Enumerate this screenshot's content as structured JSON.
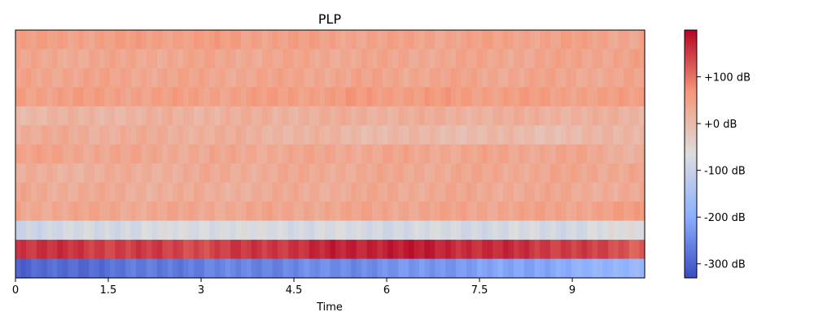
{
  "chart_data": {
    "type": "heatmap",
    "title": "PLP",
    "xlabel": "Time",
    "ylabel": "",
    "xlim": [
      0,
      10.17
    ],
    "x_ticks": [
      0,
      1.5,
      3,
      4.5,
      6,
      7.5,
      9
    ],
    "x_tick_labels": [
      "0",
      "1.5",
      "3",
      "4.5",
      "6",
      "7.5",
      "9"
    ],
    "y_ticks": [],
    "rows": 13,
    "grid": false,
    "colormap": "coolwarm",
    "colorbar": {
      "range": [
        -330,
        200
      ],
      "ticks": [
        100,
        0,
        -100,
        -200,
        -300
      ],
      "tick_labels": [
        "+100 dB",
        "+0 dB",
        "-100 dB",
        "-200 dB",
        "-300 dB"
      ]
    },
    "row_profiles": [
      {
        "row": 0,
        "x": [
          0,
          3,
          6,
          9,
          10.17
        ],
        "values": [
          50,
          55,
          45,
          48,
          42
        ]
      },
      {
        "row": 1,
        "x": [
          0,
          3,
          6,
          9,
          10.17
        ],
        "values": [
          35,
          40,
          38,
          42,
          50
        ]
      },
      {
        "row": 2,
        "x": [
          0,
          3,
          6,
          9,
          10.17
        ],
        "values": [
          45,
          40,
          42,
          40,
          38
        ]
      },
      {
        "row": 3,
        "x": [
          0,
          3,
          6,
          9,
          10.17
        ],
        "values": [
          55,
          50,
          60,
          52,
          50
        ]
      },
      {
        "row": 4,
        "x": [
          0,
          3,
          6,
          9,
          10.17
        ],
        "values": [
          10,
          20,
          25,
          22,
          15
        ]
      },
      {
        "row": 5,
        "x": [
          0,
          3,
          6,
          9,
          10.17
        ],
        "values": [
          30,
          25,
          5,
          0,
          20
        ]
      },
      {
        "row": 6,
        "x": [
          0,
          3,
          6,
          9,
          10.17
        ],
        "values": [
          45,
          35,
          40,
          40,
          20
        ]
      },
      {
        "row": 7,
        "x": [
          0,
          3,
          6,
          9,
          10.17
        ],
        "values": [
          20,
          30,
          35,
          38,
          40
        ]
      },
      {
        "row": 8,
        "x": [
          0,
          3,
          6,
          9,
          10.17
        ],
        "values": [
          35,
          25,
          35,
          35,
          25
        ]
      },
      {
        "row": 9,
        "x": [
          0,
          3,
          6,
          9,
          10.17
        ],
        "values": [
          40,
          38,
          42,
          45,
          55
        ]
      },
      {
        "row": 10,
        "x": [
          0,
          3,
          6,
          9,
          10.17
        ],
        "values": [
          -90,
          -70,
          -80,
          -80,
          -60
        ]
      },
      {
        "row": 11,
        "x": [
          0,
          3,
          6,
          9,
          10.17
        ],
        "values": [
          160,
          140,
          180,
          150,
          120
        ]
      },
      {
        "row": 12,
        "x": [
          0,
          3,
          6,
          9,
          10.17
        ],
        "values": [
          -300,
          -260,
          -240,
          -200,
          -170
        ]
      }
    ]
  }
}
